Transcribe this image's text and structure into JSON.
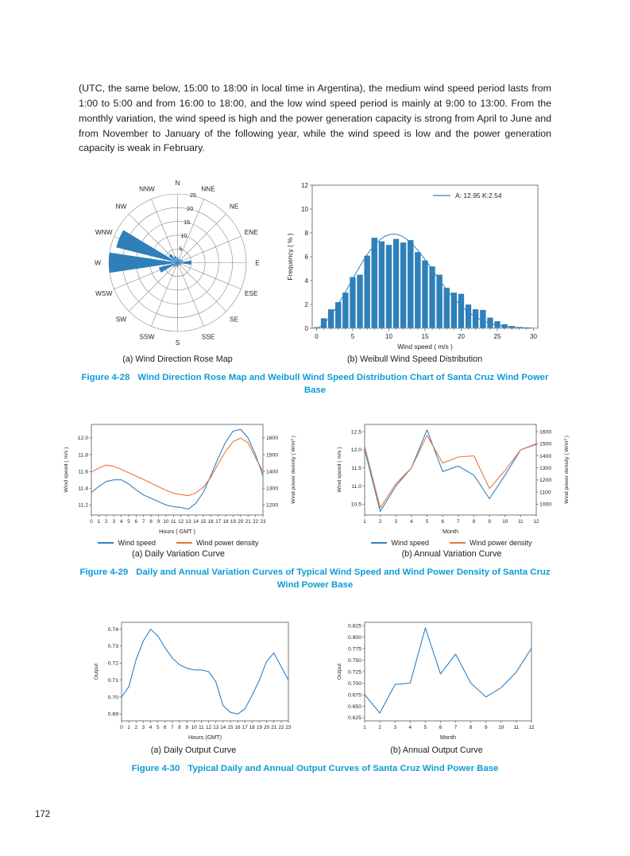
{
  "page": {
    "number": "172",
    "intro_paragraph": "(UTC, the same below, 15:00 to 18:00 in local time in Argentina), the medium wind speed period lasts from 1:00 to 5:00 and from 16:00 to 18:00, and the low wind speed period is mainly at 9:00 to 13:00. From the monthly variation, the wind speed is high and the power generation capacity is strong from April to June and from November to January of the following year, while the wind speed is low and the power generation capacity is weak in February."
  },
  "accent_colors": {
    "caption_blue": "#0c9bd7",
    "series_blue": "#2f7fc1",
    "bar_blue": "#2f80b9",
    "series_orange": "#e8763a"
  },
  "figure_428": {
    "sub_a": "(a) Wind Direction Rose Map",
    "sub_b": "(b) Weibull Wind Speed Distribution",
    "label": "Figure 4-28",
    "caption": "Wind Direction Rose Map and Weibull Wind Speed Distribution Chart of Santa Cruz Wind Power Base"
  },
  "figure_429": {
    "sub_a": "(a) Daily Variation Curve",
    "sub_b": "(b) Annual Variation Curve",
    "label": "Figure 4-29",
    "caption": "Daily and Annual Variation Curves of Typical Wind Speed and Wind Power Density of Santa Cruz Wind Power Base"
  },
  "figure_430": {
    "sub_a": "(a) Daily Output Curve",
    "sub_b": "(b) Annual Output Curve",
    "label": "Figure 4-30",
    "caption": "Typical Daily and Annual Output Curves of Santa Cruz Wind Power Base"
  },
  "chart_data": [
    {
      "id": "wind-rose",
      "type": "polar-rose",
      "title": "(a) Wind Direction Rose Map",
      "directions": [
        "N",
        "NNE",
        "NE",
        "ENE",
        "E",
        "ESE",
        "SE",
        "SSE",
        "S",
        "SSW",
        "SW",
        "WSW",
        "W",
        "WNW",
        "NW",
        "NNW"
      ],
      "values": [
        2,
        1.5,
        1.5,
        2,
        5,
        1.5,
        1,
        1,
        1.5,
        1.5,
        2,
        7,
        25,
        23,
        4,
        2.5
      ],
      "radial_ticks": [
        5,
        10,
        15,
        20,
        25
      ],
      "rlim": [
        0,
        25
      ]
    },
    {
      "id": "weibull",
      "type": "bar",
      "title": "(b) Weibull Wind Speed Distribution",
      "legend": "A: 12.95 K:2.54",
      "weibull_a": 12.95,
      "weibull_k": 2.54,
      "xlabel": "Wind speed ( m/s )",
      "ylabel": "Frequency ( % )",
      "x": [
        0,
        1,
        2,
        3,
        4,
        5,
        6,
        7,
        8,
        9,
        10,
        11,
        12,
        13,
        14,
        15,
        16,
        17,
        18,
        19,
        20,
        21,
        22,
        23,
        24,
        25,
        26,
        27,
        28,
        29,
        30
      ],
      "values": [
        0.1,
        0.85,
        1.6,
        2.2,
        3.0,
        4.3,
        4.5,
        6.1,
        7.6,
        7.3,
        7.0,
        7.5,
        7.2,
        7.4,
        6.4,
        5.7,
        5.2,
        4.5,
        3.4,
        3.0,
        2.9,
        2.0,
        1.6,
        1.55,
        0.9,
        0.6,
        0.35,
        0.2,
        0.12,
        0.08,
        0.05
      ],
      "xlim": [
        -0.6,
        30.6
      ],
      "ylim": [
        0,
        12
      ],
      "xticks": [
        0,
        5,
        10,
        15,
        20,
        25,
        30
      ],
      "yticks": [
        0,
        2,
        4,
        6,
        8,
        10,
        12
      ]
    },
    {
      "id": "daily-variation",
      "type": "line",
      "title": "(a) Daily Variation Curve",
      "xlabel": "Hours ( GMT )",
      "ylabel_left": "Wind speed ( m/s )",
      "ylabel_right": "Wind power density ( W/m² )",
      "x": [
        0,
        1,
        2,
        3,
        4,
        5,
        6,
        7,
        8,
        9,
        10,
        11,
        12,
        13,
        14,
        15,
        16,
        17,
        18,
        19,
        20,
        21,
        22,
        23
      ],
      "series": [
        {
          "name": "Wind speed",
          "axis": "left",
          "color": "#2f7fc1",
          "values": [
            11.35,
            11.42,
            11.48,
            11.5,
            11.5,
            11.45,
            11.38,
            11.32,
            11.28,
            11.24,
            11.2,
            11.18,
            11.17,
            11.15,
            11.22,
            11.35,
            11.55,
            11.76,
            11.95,
            12.08,
            12.1,
            12.0,
            11.8,
            11.55
          ]
        },
        {
          "name": "Wind power density",
          "axis": "right",
          "color": "#e8763a",
          "values": [
            1395,
            1420,
            1438,
            1430,
            1412,
            1392,
            1372,
            1352,
            1330,
            1308,
            1288,
            1270,
            1262,
            1255,
            1272,
            1305,
            1365,
            1445,
            1520,
            1578,
            1598,
            1570,
            1482,
            1400
          ]
        }
      ],
      "ylim_left": [
        11.08,
        12.16
      ],
      "yticks_left": [
        "11.2",
        "11.4",
        "11.6",
        "11.8",
        "12.0"
      ],
      "ylim_right": [
        1140,
        1680
      ],
      "yticks_right": [
        "1200",
        "1300",
        "1400",
        "1500",
        "1600"
      ],
      "legend_position": "bottom"
    },
    {
      "id": "annual-variation",
      "type": "line",
      "title": "(b) Annual Variation Curve",
      "xlabel": "Month",
      "ylabel_left": "Wind speed ( m/s )",
      "ylabel_right": "Wind power density ( W/m² )",
      "x": [
        1,
        2,
        3,
        4,
        5,
        6,
        7,
        8,
        9,
        10,
        11,
        12
      ],
      "series": [
        {
          "name": "Wind speed",
          "axis": "left",
          "color": "#2f7fc1",
          "values": [
            12.0,
            10.3,
            11.0,
            11.5,
            12.55,
            11.4,
            11.55,
            11.3,
            10.65,
            11.3,
            12.0,
            12.15
          ]
        },
        {
          "name": "Wind power density",
          "axis": "right",
          "color": "#e8763a",
          "values": [
            1480,
            970,
            1170,
            1300,
            1570,
            1340,
            1390,
            1400,
            1130,
            1280,
            1450,
            1500
          ]
        }
      ],
      "ylim_left": [
        10.2,
        12.7
      ],
      "yticks_left": [
        "10.5",
        "11.0",
        "11.5",
        "12.0",
        "12.5"
      ],
      "ylim_right": [
        910,
        1660
      ],
      "yticks_right": [
        "1000",
        "1100",
        "1200",
        "1300",
        "1400",
        "1500",
        "1600"
      ],
      "legend_position": "bottom"
    },
    {
      "id": "daily-output",
      "type": "line",
      "title": "(a) Daily Output Curve",
      "xlabel": "Hours (GMT)",
      "ylabel": "Output",
      "x": [
        0,
        1,
        2,
        3,
        4,
        5,
        6,
        7,
        8,
        9,
        10,
        11,
        12,
        13,
        14,
        15,
        16,
        17,
        18,
        19,
        20,
        21,
        22,
        23
      ],
      "values": [
        0.7,
        0.706,
        0.722,
        0.733,
        0.74,
        0.736,
        0.729,
        0.723,
        0.719,
        0.717,
        0.716,
        0.716,
        0.715,
        0.709,
        0.695,
        0.691,
        0.69,
        0.693,
        0.701,
        0.71,
        0.721,
        0.726,
        0.718,
        0.71
      ],
      "color": "#2f7fc1",
      "ylim": [
        0.686,
        0.744
      ],
      "yticks": [
        "0.69",
        "0.70",
        "0.71",
        "0.72",
        "0.73",
        "0.74"
      ]
    },
    {
      "id": "annual-output",
      "type": "line",
      "title": "(b) Annual Output Curve",
      "xlabel": "Month",
      "ylabel": "Output",
      "x": [
        1,
        2,
        3,
        4,
        5,
        6,
        7,
        8,
        9,
        10,
        11,
        12
      ],
      "values": [
        0.675,
        0.635,
        0.697,
        0.7,
        0.82,
        0.72,
        0.763,
        0.7,
        0.67,
        0.69,
        0.724,
        0.776
      ],
      "color": "#2f7fc1",
      "ylim": [
        0.618,
        0.832
      ],
      "yticks": [
        "0.625",
        "0.650",
        "0.675",
        "0.700",
        "0.725",
        "0.750",
        "0.775",
        "0.800",
        "0.825"
      ]
    }
  ]
}
